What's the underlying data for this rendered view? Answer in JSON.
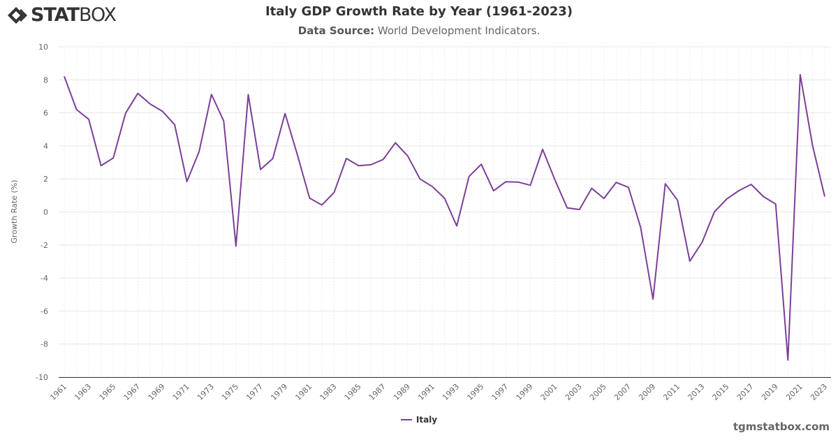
{
  "brand": {
    "logo_text_bold": "STAT",
    "logo_text": "BOX",
    "footer": "tgmstatbox.com"
  },
  "chart_data": {
    "type": "line",
    "title": "Italy GDP Growth Rate by Year (1961-2023)",
    "subtitle_label": "Data Source:",
    "subtitle_value": "World Development Indicators.",
    "xlabel": "",
    "ylabel": "Growth Rate (%)",
    "ylim": [
      -10,
      10
    ],
    "yticks": [
      10,
      8,
      6,
      4,
      2,
      0,
      -2,
      -4,
      -6,
      -8,
      -10
    ],
    "grid": true,
    "legend_position": "bottom-center",
    "x": [
      1961,
      1962,
      1963,
      1964,
      1965,
      1966,
      1967,
      1968,
      1969,
      1970,
      1971,
      1972,
      1973,
      1974,
      1975,
      1976,
      1977,
      1978,
      1979,
      1980,
      1981,
      1982,
      1983,
      1984,
      1985,
      1986,
      1987,
      1988,
      1989,
      1990,
      1991,
      1992,
      1993,
      1994,
      1995,
      1996,
      1997,
      1998,
      1999,
      2000,
      2001,
      2002,
      2003,
      2004,
      2005,
      2006,
      2007,
      2008,
      2009,
      2010,
      2011,
      2012,
      2013,
      2014,
      2015,
      2016,
      2017,
      2018,
      2019,
      2020,
      2021,
      2022,
      2023
    ],
    "series": [
      {
        "name": "Italy",
        "color": "#7b3f98",
        "values": [
          8.21,
          6.2,
          5.61,
          2.8,
          3.27,
          5.98,
          7.18,
          6.54,
          6.1,
          5.29,
          1.84,
          3.67,
          7.12,
          5.51,
          -2.07,
          7.11,
          2.57,
          3.23,
          5.96,
          3.48,
          0.84,
          0.42,
          1.18,
          3.24,
          2.8,
          2.86,
          3.18,
          4.19,
          3.39,
          2.0,
          1.54,
          0.84,
          -0.85,
          2.15,
          2.89,
          1.28,
          1.83,
          1.81,
          1.62,
          3.79,
          1.95,
          0.25,
          0.15,
          1.43,
          0.82,
          1.79,
          1.49,
          -0.96,
          -5.28,
          1.71,
          0.71,
          -2.98,
          -1.84,
          0.0,
          0.78,
          1.29,
          1.67,
          0.93,
          0.48,
          -8.97,
          8.31,
          4.05,
          0.93
        ]
      }
    ]
  }
}
